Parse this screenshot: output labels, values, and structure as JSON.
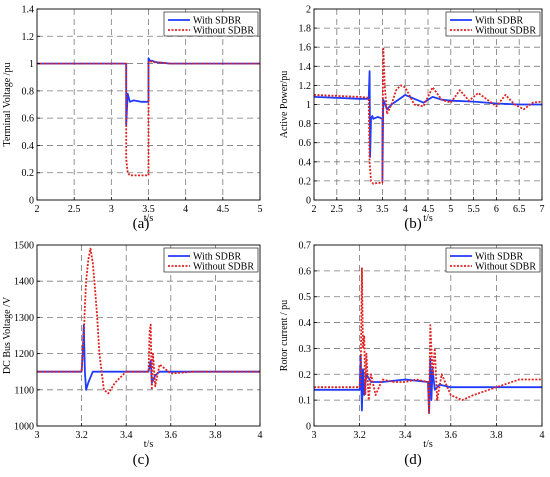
{
  "colors": {
    "with": "#1f3bff",
    "without": "#e02020"
  },
  "chart_data": [
    {
      "panel": "a",
      "caption": "(a)",
      "type": "line",
      "xlabel": "t/s",
      "ylabel": "Terminal Voltage /pu",
      "xlim": [
        2,
        5
      ],
      "ylim": [
        0,
        1.4
      ],
      "xticks": [
        "2",
        "2.5",
        "3",
        "3.5",
        "4",
        "4.5",
        "5"
      ],
      "yticks": [
        "0",
        "0.2",
        "0.4",
        "0.6",
        "0.8",
        "1",
        "1.2",
        "1.4"
      ],
      "legend": "top-right",
      "series": [
        {
          "name": "With SDBR",
          "style": "solid",
          "x": [
            2,
            3.2,
            3.2,
            3.22,
            3.23,
            3.25,
            3.3,
            3.4,
            3.5,
            3.5,
            3.52,
            3.55,
            3.6,
            3.8,
            4,
            5
          ],
          "y": [
            1.0,
            1.0,
            0.55,
            0.78,
            0.76,
            0.72,
            0.73,
            0.72,
            0.72,
            1.04,
            1.02,
            1.02,
            1.01,
            1.0,
            1.0,
            1.0
          ]
        },
        {
          "name": "Without SDBR",
          "style": "dotted",
          "x": [
            2,
            3.2,
            3.2,
            3.22,
            3.25,
            3.3,
            3.4,
            3.5,
            3.5,
            3.52,
            3.55,
            3.6,
            3.8,
            4,
            5
          ],
          "y": [
            1.0,
            1.0,
            0.3,
            0.2,
            0.18,
            0.18,
            0.18,
            0.18,
            1.01,
            1.02,
            1.01,
            1.01,
            1.0,
            1.0,
            1.0
          ]
        }
      ]
    },
    {
      "panel": "b",
      "caption": "(b)",
      "type": "line",
      "xlabel": "t/s",
      "ylabel": "Active Power/pu",
      "xlim": [
        2,
        7
      ],
      "ylim": [
        0,
        2
      ],
      "xticks": [
        "2",
        "2.5",
        "3",
        "3.5",
        "4",
        "4.5",
        "5",
        "5.5",
        "6",
        "6.5",
        "7"
      ],
      "yticks": [
        "0",
        "0.2",
        "0.4",
        "0.6",
        "0.8",
        "1",
        "1.2",
        "1.4",
        "1.6",
        "1.8",
        "2"
      ],
      "legend": "top-right",
      "series": [
        {
          "name": "With SDBR",
          "style": "solid",
          "x": [
            2,
            3.0,
            3.2,
            3.22,
            3.23,
            3.25,
            3.28,
            3.3,
            3.4,
            3.5,
            3.5,
            3.52,
            3.6,
            3.7,
            3.85,
            4.0,
            4.2,
            4.4,
            4.6,
            4.8,
            5.0,
            5.5,
            6.0,
            6.5,
            7.0
          ],
          "y": [
            1.08,
            1.06,
            1.06,
            1.35,
            0.45,
            0.85,
            0.88,
            0.85,
            0.87,
            0.85,
            0.2,
            1.05,
            0.95,
            1.0,
            1.05,
            1.1,
            1.06,
            1.02,
            1.08,
            1.05,
            1.04,
            1.03,
            1.01,
            1.0,
            1.0
          ]
        },
        {
          "name": "Without SDBR",
          "style": "dotted",
          "x": [
            2,
            3.0,
            3.2,
            3.22,
            3.25,
            3.3,
            3.4,
            3.5,
            3.5,
            3.52,
            3.55,
            3.6,
            3.7,
            3.8,
            3.9,
            4.0,
            4.2,
            4.4,
            4.6,
            4.8,
            5.0,
            5.2,
            5.4,
            5.6,
            5.8,
            6.0,
            6.2,
            6.4,
            6.6,
            6.8,
            7.0
          ],
          "y": [
            1.1,
            1.08,
            1.07,
            0.4,
            0.2,
            0.17,
            0.18,
            0.18,
            0.6,
            1.6,
            1.2,
            0.9,
            1.0,
            1.15,
            1.2,
            1.18,
            1.0,
            0.98,
            1.18,
            1.05,
            1.02,
            1.15,
            1.04,
            1.12,
            1.05,
            0.98,
            1.1,
            1.0,
            0.95,
            1.02,
            1.03
          ]
        }
      ]
    },
    {
      "panel": "c",
      "caption": "(c)",
      "type": "line",
      "xlabel": "t/s",
      "ylabel": "DC Bus Voltage /V",
      "xlim": [
        3,
        4
      ],
      "ylim": [
        1000,
        1500
      ],
      "xticks": [
        "3",
        "3.2",
        "3.4",
        "3.6",
        "3.8",
        "4"
      ],
      "yticks": [
        "1000",
        "1100",
        "1200",
        "1300",
        "1400",
        "1500"
      ],
      "legend": "top-right",
      "series": [
        {
          "name": "With SDBR",
          "style": "solid",
          "x": [
            3,
            3.2,
            3.205,
            3.21,
            3.215,
            3.22,
            3.23,
            3.25,
            3.3,
            3.5,
            3.51,
            3.515,
            3.52,
            3.53,
            3.55,
            3.6,
            3.7,
            4
          ],
          "y": [
            1150,
            1150,
            1200,
            1280,
            1150,
            1100,
            1120,
            1150,
            1150,
            1150,
            1180,
            1120,
            1125,
            1140,
            1150,
            1150,
            1150,
            1150
          ]
        },
        {
          "name": "Without SDBR",
          "style": "dotted",
          "x": [
            3,
            3.2,
            3.21,
            3.215,
            3.22,
            3.23,
            3.24,
            3.25,
            3.26,
            3.27,
            3.28,
            3.3,
            3.32,
            3.35,
            3.4,
            3.45,
            3.5,
            3.505,
            3.51,
            3.515,
            3.52,
            3.53,
            3.55,
            3.6,
            3.7,
            4
          ],
          "y": [
            1150,
            1150,
            1250,
            1330,
            1400,
            1460,
            1490,
            1450,
            1380,
            1300,
            1200,
            1100,
            1090,
            1120,
            1150,
            1150,
            1150,
            1260,
            1280,
            1100,
            1200,
            1110,
            1170,
            1145,
            1150,
            1150
          ]
        }
      ]
    },
    {
      "panel": "d",
      "caption": "(d)",
      "type": "line",
      "xlabel": "t/s",
      "ylabel": "Rotor current / pu",
      "xlim": [
        3,
        4
      ],
      "ylim": [
        0,
        0.7
      ],
      "xticks": [
        "3",
        "3.2",
        "3.4",
        "3.6",
        "3.8",
        "4"
      ],
      "yticks": [
        "0",
        "0.1",
        "0.2",
        "0.3",
        "0.4",
        "0.5",
        "0.6",
        "0.7"
      ],
      "legend": "top-right",
      "series": [
        {
          "name": "With SDBR",
          "style": "solid",
          "x": [
            3,
            3.2,
            3.205,
            3.21,
            3.215,
            3.22,
            3.23,
            3.25,
            3.3,
            3.4,
            3.5,
            3.505,
            3.51,
            3.515,
            3.52,
            3.53,
            3.55,
            3.6,
            3.7,
            3.8,
            3.9,
            4
          ],
          "y": [
            0.14,
            0.14,
            0.27,
            0.06,
            0.22,
            0.12,
            0.2,
            0.17,
            0.17,
            0.18,
            0.17,
            0.05,
            0.26,
            0.1,
            0.22,
            0.14,
            0.16,
            0.15,
            0.15,
            0.15,
            0.15,
            0.15
          ]
        },
        {
          "name": "Without SDBR",
          "style": "dotted",
          "x": [
            3,
            3.2,
            3.205,
            3.21,
            3.215,
            3.22,
            3.225,
            3.23,
            3.24,
            3.25,
            3.27,
            3.3,
            3.35,
            3.4,
            3.45,
            3.5,
            3.505,
            3.51,
            3.52,
            3.53,
            3.54,
            3.56,
            3.6,
            3.65,
            3.7,
            3.8,
            3.9,
            4
          ],
          "y": [
            0.15,
            0.15,
            0.2,
            0.61,
            0.3,
            0.35,
            0.12,
            0.28,
            0.1,
            0.2,
            0.12,
            0.18,
            0.17,
            0.17,
            0.18,
            0.17,
            0.05,
            0.39,
            0.2,
            0.3,
            0.1,
            0.2,
            0.12,
            0.1,
            0.12,
            0.15,
            0.18,
            0.18
          ]
        }
      ]
    }
  ]
}
